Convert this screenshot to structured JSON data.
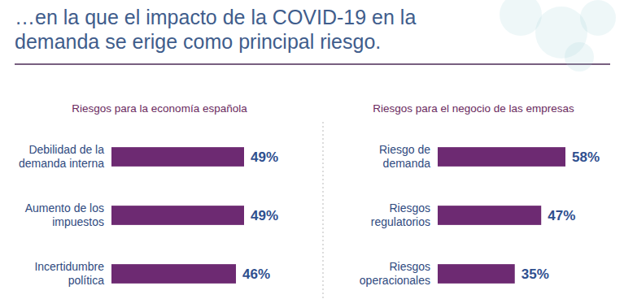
{
  "header": {
    "title": "…en la que el impacto de la COVID-19 en la demanda se erige como principal riesgo."
  },
  "chart_data": [
    {
      "type": "bar",
      "orientation": "horizontal",
      "title": "Riesgos para la economía española",
      "categories": [
        "Debilidad de la demanda interna",
        "Aumento de los impuestos",
        "Incertidumbre política"
      ],
      "values": [
        49,
        49,
        46
      ],
      "value_labels": [
        "49%",
        "49%",
        "46%"
      ],
      "color": "#6d2a72",
      "data_labels": true,
      "tick_labels": "y"
    },
    {
      "type": "bar",
      "orientation": "horizontal",
      "title": "Riesgos para el negocio de las empresas",
      "categories": [
        "Riesgo de demanda",
        "Riesgos regulatorios",
        "Riesgos operacionales"
      ],
      "values": [
        58,
        47,
        35
      ],
      "value_labels": [
        "58%",
        "47%",
        "35%"
      ],
      "color": "#6d2a72",
      "data_labels": true,
      "tick_labels": "y"
    }
  ]
}
